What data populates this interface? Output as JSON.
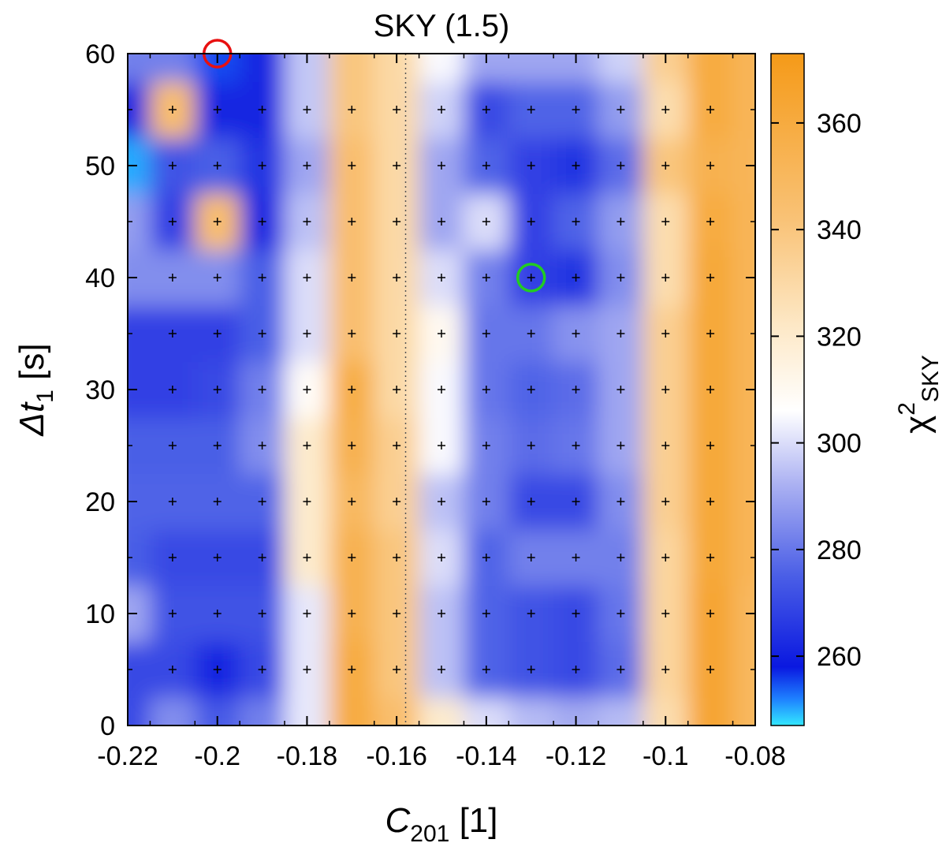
{
  "chart_data": {
    "type": "heatmap",
    "title": "SKY (1.5)",
    "xlabel": {
      "main": "C",
      "sub": "201",
      "unit": " [1]"
    },
    "ylabel": {
      "main": "Δt",
      "sub": "1",
      "unit": " [s]"
    },
    "colorbar_label": {
      "main": "χ",
      "sup": "2",
      "sub": "SKY"
    },
    "xlim": [
      -0.22,
      -0.08
    ],
    "ylim": [
      0,
      60
    ],
    "xticks": [
      -0.22,
      -0.2,
      -0.18,
      -0.16,
      -0.14,
      -0.12,
      -0.1,
      -0.08
    ],
    "xtick_labels": [
      "-0.22",
      "-0.2",
      "-0.18",
      "-0.16",
      "-0.14",
      "-0.12",
      "-0.1",
      "-0.08"
    ],
    "yticks": [
      0,
      10,
      20,
      30,
      40,
      50,
      60
    ],
    "ytick_labels": [
      "0",
      "10",
      "20",
      "30",
      "40",
      "50",
      "60"
    ],
    "colorbar_range": [
      247,
      373
    ],
    "colorbar_ticks": [
      260,
      280,
      300,
      320,
      340,
      360
    ],
    "colorbar_tick_labels": [
      "260",
      "280",
      "300",
      "320",
      "340",
      "360"
    ],
    "colormap": [
      {
        "v": 247,
        "color": "#33e8ff"
      },
      {
        "v": 252,
        "color": "#1e80ff"
      },
      {
        "v": 258,
        "color": "#0a18e0"
      },
      {
        "v": 275,
        "color": "#4a5ee6"
      },
      {
        "v": 292,
        "color": "#aab0f2"
      },
      {
        "v": 306,
        "color": "#ffffff"
      },
      {
        "v": 322,
        "color": "#fde8c6"
      },
      {
        "v": 342,
        "color": "#f9c276"
      },
      {
        "v": 373,
        "color": "#f59a18"
      }
    ],
    "grid_x": [
      -0.22,
      -0.21,
      -0.2,
      -0.19,
      -0.18,
      -0.17,
      -0.16,
      -0.15,
      -0.14,
      -0.13,
      -0.12,
      -0.11,
      -0.1,
      -0.09,
      -0.08
    ],
    "grid_y": [
      0,
      5,
      10,
      15,
      20,
      25,
      30,
      35,
      40,
      45,
      50,
      55,
      60
    ],
    "z": [
      [
        270,
        285,
        274,
        282,
        302,
        360,
        345,
        320,
        300,
        294,
        291,
        294,
        328,
        365,
        350
      ],
      [
        270,
        270,
        262,
        270,
        302,
        360,
        340,
        295,
        276,
        272,
        270,
        278,
        332,
        365,
        350
      ],
      [
        290,
        272,
        272,
        272,
        302,
        355,
        340,
        295,
        276,
        272,
        270,
        280,
        332,
        365,
        350
      ],
      [
        275,
        270,
        270,
        270,
        320,
        355,
        340,
        300,
        276,
        282,
        282,
        282,
        332,
        362,
        352
      ],
      [
        276,
        276,
        276,
        276,
        320,
        350,
        335,
        295,
        282,
        270,
        270,
        285,
        335,
        362,
        352
      ],
      [
        275,
        275,
        275,
        285,
        320,
        355,
        335,
        305,
        282,
        278,
        280,
        290,
        335,
        362,
        352
      ],
      [
        268,
        268,
        270,
        282,
        308,
        358,
        330,
        305,
        280,
        276,
        278,
        290,
        335,
        362,
        352
      ],
      [
        268,
        268,
        268,
        275,
        300,
        345,
        330,
        310,
        280,
        280,
        286,
        290,
        335,
        362,
        352
      ],
      [
        285,
        285,
        285,
        275,
        300,
        345,
        330,
        300,
        282,
        268,
        265,
        285,
        328,
        362,
        352
      ],
      [
        288,
        268,
        345,
        262,
        295,
        345,
        330,
        290,
        300,
        268,
        276,
        288,
        328,
        360,
        352
      ],
      [
        250,
        272,
        275,
        265,
        290,
        345,
        330,
        290,
        276,
        268,
        265,
        278,
        340,
        355,
        352
      ],
      [
        262,
        345,
        262,
        262,
        296,
        340,
        330,
        298,
        270,
        276,
        276,
        288,
        328,
        360,
        352
      ],
      [
        282,
        282,
        255,
        262,
        296,
        340,
        330,
        305,
        290,
        290,
        290,
        298,
        335,
        360,
        352
      ]
    ],
    "reference_line": {
      "x": -0.158,
      "style": "dotted"
    },
    "markers": [
      {
        "x": -0.2,
        "y": 60,
        "shape": "circle",
        "color": "#e81010"
      },
      {
        "x": -0.13,
        "y": 40,
        "shape": "circle",
        "color": "#22cc22"
      }
    ],
    "sample_points": {
      "symbol": "+",
      "x_step": 0.01,
      "y_step": 5
    }
  }
}
